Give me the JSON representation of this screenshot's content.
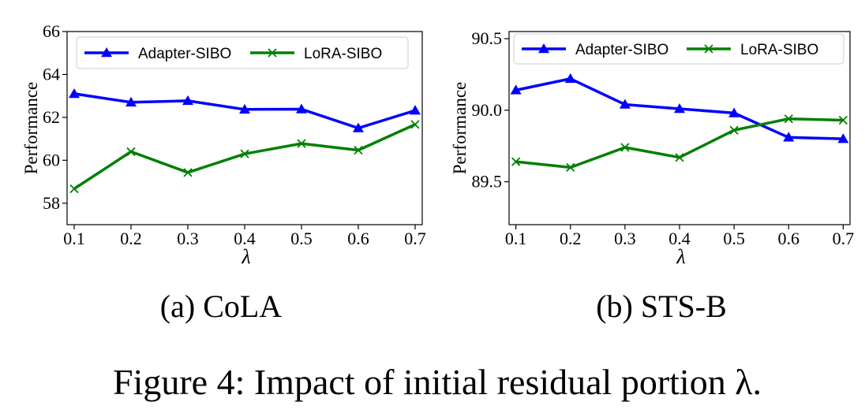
{
  "chart_data": [
    {
      "type": "line",
      "subcaption": "(a)  CoLA",
      "xlabel": "λ",
      "ylabel": "Performance",
      "x": [
        0.1,
        0.2,
        0.3,
        0.4,
        0.5,
        0.6,
        0.7
      ],
      "x_ticks": [
        "0.1",
        "0.2",
        "0.3",
        "0.4",
        "0.5",
        "0.6",
        "0.7"
      ],
      "ylim": [
        57,
        66
      ],
      "y_ticks": [
        58,
        60,
        62,
        64,
        66
      ],
      "y_tick_labels": [
        "58",
        "60",
        "62",
        "64",
        "66"
      ],
      "grid": false,
      "legend_position": "top",
      "series": [
        {
          "name": "Adapter-SIBO",
          "color": "#0000ff",
          "marker": "triangle",
          "values": [
            63.1,
            62.7,
            62.77,
            62.37,
            62.38,
            61.5,
            62.32
          ]
        },
        {
          "name": "LoRA-SIBO",
          "color": "#008000",
          "marker": "x",
          "values": [
            58.67,
            60.4,
            59.43,
            60.3,
            60.78,
            60.47,
            61.67
          ]
        }
      ]
    },
    {
      "type": "line",
      "subcaption": "(b)  STS-B",
      "xlabel": "λ",
      "ylabel": "Performance",
      "x": [
        0.1,
        0.2,
        0.3,
        0.4,
        0.5,
        0.6,
        0.7
      ],
      "x_ticks": [
        "0.1",
        "0.2",
        "0.3",
        "0.4",
        "0.5",
        "0.6",
        "0.7"
      ],
      "ylim": [
        89.2,
        90.55
      ],
      "y_ticks": [
        89.5,
        90.0,
        90.5
      ],
      "y_tick_labels": [
        "89.5",
        "90.0",
        "90.5"
      ],
      "grid": false,
      "legend_position": "top",
      "series": [
        {
          "name": "Adapter-SIBO",
          "color": "#0000ff",
          "marker": "triangle",
          "values": [
            90.14,
            90.22,
            90.04,
            90.01,
            89.98,
            89.81,
            89.8
          ]
        },
        {
          "name": "LoRA-SIBO",
          "color": "#008000",
          "marker": "x",
          "values": [
            89.64,
            89.6,
            89.74,
            89.67,
            89.86,
            89.94,
            89.93
          ]
        }
      ]
    }
  ],
  "caption": "Figure 4: Impact of initial residual portion λ."
}
